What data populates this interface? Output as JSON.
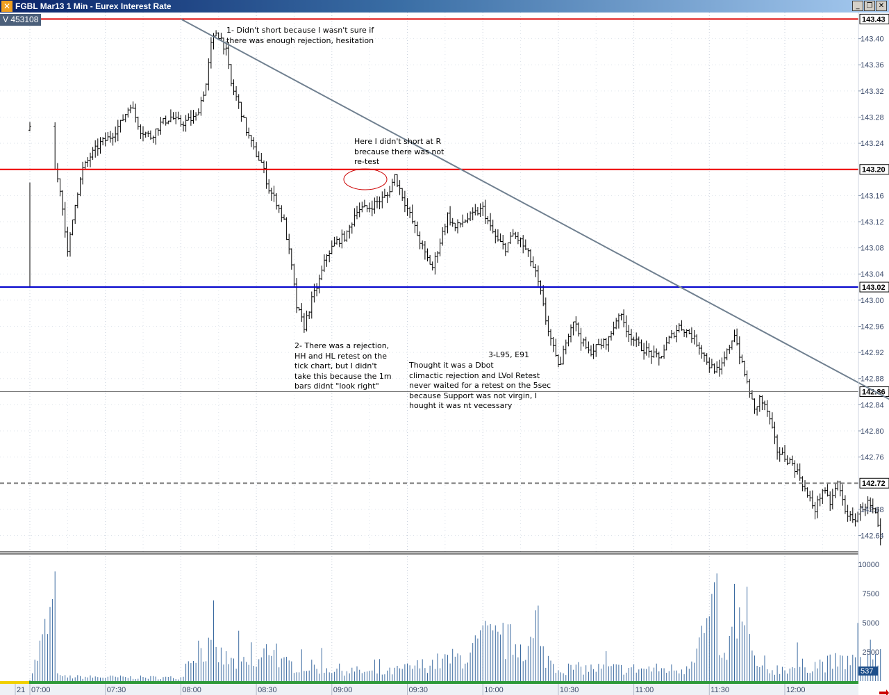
{
  "window": {
    "title": "FGBL Mar13 1 Min - Eurex Interest Rate",
    "minimize_icon": "minimize-icon",
    "restore_icon": "restore-icon",
    "close_icon": "close-icon"
  },
  "volume_badge": "V  453108",
  "annotations": [
    {
      "id": "note-1",
      "text": "1- Didn't short because I wasn't sure if\nthere was enough rejection, hesitation"
    },
    {
      "id": "note-2",
      "text": "Here I didn't short at R\nbrecause there was not\nre-test"
    },
    {
      "id": "note-3",
      "text": "2- There was a rejection,\nHH and HL retest on the\ntick chart, but I didn't\ntake this because the 1m\nbars didnt \"look right\""
    },
    {
      "id": "note-4",
      "text": "3-L95, E91"
    },
    {
      "id": "note-5",
      "text": "Thought it was a Dbot\nclimactic rejection and LVol Retest\nnever waited for a retest on the 5sec\nbecause Support was not virgin, I\nhought it was nt vecessary"
    }
  ],
  "chart_data": {
    "type": "bar",
    "instrument": "FGBL Mar13",
    "interval": "1 Min",
    "price_axis": {
      "ticks": [
        "143.40",
        "143.36",
        "143.32",
        "143.28",
        "143.24",
        "143.16",
        "143.12",
        "143.08",
        "143.04",
        "143.00",
        "142.96",
        "142.92",
        "142.88",
        "142.84",
        "142.80",
        "142.76",
        "142.68",
        "142.64"
      ],
      "range": [
        142.615,
        143.44
      ]
    },
    "time_axis": {
      "ticks": [
        "21",
        "07:00",
        "07:30",
        "08:00",
        "08:30",
        "09:00",
        "09:30",
        "10:00",
        "10:30",
        "11:00",
        "11:30",
        "12:00"
      ]
    },
    "volume_axis": {
      "ticks": [
        "10000",
        "7500",
        "5000",
        "2500"
      ],
      "last_value": "537",
      "range": [
        0,
        10700
      ]
    },
    "levels": [
      {
        "price": 143.43,
        "label": "143.43",
        "color": "#dd0000",
        "style": "solid"
      },
      {
        "price": 143.2,
        "label": "143.20",
        "color": "#ee0000",
        "style": "solid"
      },
      {
        "price": 143.02,
        "label": "143.02",
        "color": "#0000cc",
        "style": "solid"
      },
      {
        "price": 142.86,
        "label": "142.86",
        "color": "#707070",
        "style": "thin"
      },
      {
        "price": 142.72,
        "label": "142.72",
        "color": "#808080",
        "style": "dashed"
      }
    ],
    "trendline": {
      "from": {
        "time": "08:00",
        "price": 143.43
      },
      "to": {
        "time": "12:48",
        "price": 142.835
      },
      "color": "#708090"
    },
    "price_keypoints": [
      [
        0,
        143.26
      ],
      [
        4,
        143.24
      ],
      [
        6,
        143.22
      ],
      [
        8,
        143.23
      ],
      [
        12,
        143.17
      ],
      [
        14,
        143.11
      ],
      [
        15,
        143.07
      ],
      [
        18,
        143.15
      ],
      [
        21,
        143.2
      ],
      [
        24,
        143.22
      ],
      [
        28,
        143.24
      ],
      [
        32,
        143.25
      ],
      [
        36,
        143.27
      ],
      [
        40,
        143.3
      ],
      [
        44,
        143.26
      ],
      [
        48,
        143.25
      ],
      [
        52,
        143.27
      ],
      [
        56,
        143.28
      ],
      [
        60,
        143.27
      ],
      [
        66,
        143.28
      ],
      [
        70,
        143.33
      ],
      [
        72,
        143.39
      ],
      [
        74,
        143.41
      ],
      [
        76,
        143.4
      ],
      [
        78,
        143.38
      ],
      [
        80,
        143.33
      ],
      [
        83,
        143.3
      ],
      [
        86,
        143.26
      ],
      [
        89,
        143.23
      ],
      [
        92,
        143.21
      ],
      [
        95,
        143.17
      ],
      [
        98,
        143.15
      ],
      [
        101,
        143.12
      ],
      [
        104,
        143.05
      ],
      [
        106,
        142.99
      ],
      [
        109,
        142.96
      ],
      [
        112,
        143.0
      ],
      [
        115,
        143.03
      ],
      [
        118,
        143.07
      ],
      [
        122,
        143.09
      ],
      [
        126,
        143.1
      ],
      [
        130,
        143.14
      ],
      [
        134,
        143.14
      ],
      [
        138,
        143.15
      ],
      [
        142,
        143.16
      ],
      [
        145,
        143.19
      ],
      [
        148,
        143.16
      ],
      [
        151,
        143.13
      ],
      [
        154,
        143.1
      ],
      [
        157,
        143.07
      ],
      [
        160,
        143.05
      ],
      [
        163,
        143.09
      ],
      [
        166,
        143.13
      ],
      [
        169,
        143.11
      ],
      [
        172,
        143.12
      ],
      [
        176,
        143.13
      ],
      [
        180,
        143.14
      ],
      [
        183,
        143.11
      ],
      [
        186,
        143.09
      ],
      [
        189,
        143.08
      ],
      [
        192,
        143.1
      ],
      [
        195,
        143.09
      ],
      [
        198,
        143.07
      ],
      [
        201,
        143.04
      ],
      [
        203,
        143.01
      ],
      [
        205,
        142.97
      ],
      [
        207,
        142.94
      ],
      [
        209,
        142.91
      ],
      [
        211,
        142.9
      ],
      [
        213,
        142.94
      ],
      [
        216,
        142.97
      ],
      [
        219,
        142.94
      ],
      [
        222,
        142.92
      ],
      [
        226,
        142.93
      ],
      [
        230,
        142.94
      ],
      [
        234,
        142.98
      ],
      [
        238,
        142.95
      ],
      [
        242,
        142.93
      ],
      [
        246,
        142.92
      ],
      [
        250,
        142.91
      ],
      [
        254,
        142.94
      ],
      [
        258,
        142.96
      ],
      [
        262,
        142.95
      ],
      [
        266,
        142.93
      ],
      [
        270,
        142.9
      ],
      [
        274,
        142.89
      ],
      [
        277,
        142.92
      ],
      [
        280,
        142.95
      ],
      [
        283,
        142.9
      ],
      [
        286,
        142.86
      ],
      [
        288,
        142.83
      ],
      [
        290,
        142.85
      ],
      [
        293,
        142.83
      ],
      [
        295,
        142.8
      ],
      [
        297,
        142.77
      ],
      [
        300,
        142.76
      ],
      [
        303,
        142.75
      ],
      [
        306,
        142.73
      ],
      [
        309,
        142.7
      ],
      [
        312,
        142.68
      ],
      [
        315,
        142.71
      ],
      [
        318,
        142.69
      ],
      [
        321,
        142.72
      ],
      [
        324,
        142.68
      ],
      [
        327,
        142.66
      ],
      [
        330,
        142.68
      ],
      [
        333,
        142.69
      ],
      [
        336,
        142.67
      ],
      [
        338,
        142.63
      ]
    ],
    "volume_keypoints": [
      [
        0,
        300
      ],
      [
        10,
        9000
      ],
      [
        11,
        1500
      ],
      [
        12,
        500
      ],
      [
        60,
        400
      ],
      [
        66,
        4000
      ],
      [
        70,
        3800
      ],
      [
        80,
        2200
      ],
      [
        90,
        1800
      ],
      [
        97,
        4700
      ],
      [
        100,
        2000
      ],
      [
        140,
        900
      ],
      [
        175,
        3000
      ],
      [
        180,
        5000
      ],
      [
        200,
        4200
      ],
      [
        210,
        1500
      ],
      [
        260,
        1400
      ],
      [
        273,
        8400
      ],
      [
        275,
        2000
      ],
      [
        282,
        7000
      ],
      [
        290,
        1200
      ],
      [
        338,
        2800
      ]
    ]
  }
}
